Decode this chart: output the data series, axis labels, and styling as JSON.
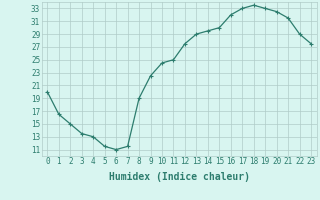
{
  "x": [
    0,
    1,
    2,
    3,
    4,
    5,
    6,
    7,
    8,
    9,
    10,
    11,
    12,
    13,
    14,
    15,
    16,
    17,
    18,
    19,
    20,
    21,
    22,
    23
  ],
  "y": [
    20,
    16.5,
    15,
    13.5,
    13,
    11.5,
    11,
    11.5,
    19,
    22.5,
    24.5,
    25,
    27.5,
    29,
    29.5,
    30,
    32,
    33,
    33.5,
    33,
    32.5,
    31.5,
    29,
    27.5
  ],
  "line_color": "#2d7d6e",
  "marker": "+",
  "bg_color": "#d8f5f0",
  "grid_color": "#b0ccc8",
  "xlabel": "Humidex (Indice chaleur)",
  "xlabel_fontsize": 7,
  "tick_fontsize": 5.5,
  "xlim": [
    -0.5,
    23.5
  ],
  "ylim": [
    10,
    34
  ],
  "yticks": [
    11,
    13,
    15,
    17,
    19,
    21,
    23,
    25,
    27,
    29,
    31,
    33
  ],
  "xticks": [
    0,
    1,
    2,
    3,
    4,
    5,
    6,
    7,
    8,
    9,
    10,
    11,
    12,
    13,
    14,
    15,
    16,
    17,
    18,
    19,
    20,
    21,
    22,
    23
  ]
}
